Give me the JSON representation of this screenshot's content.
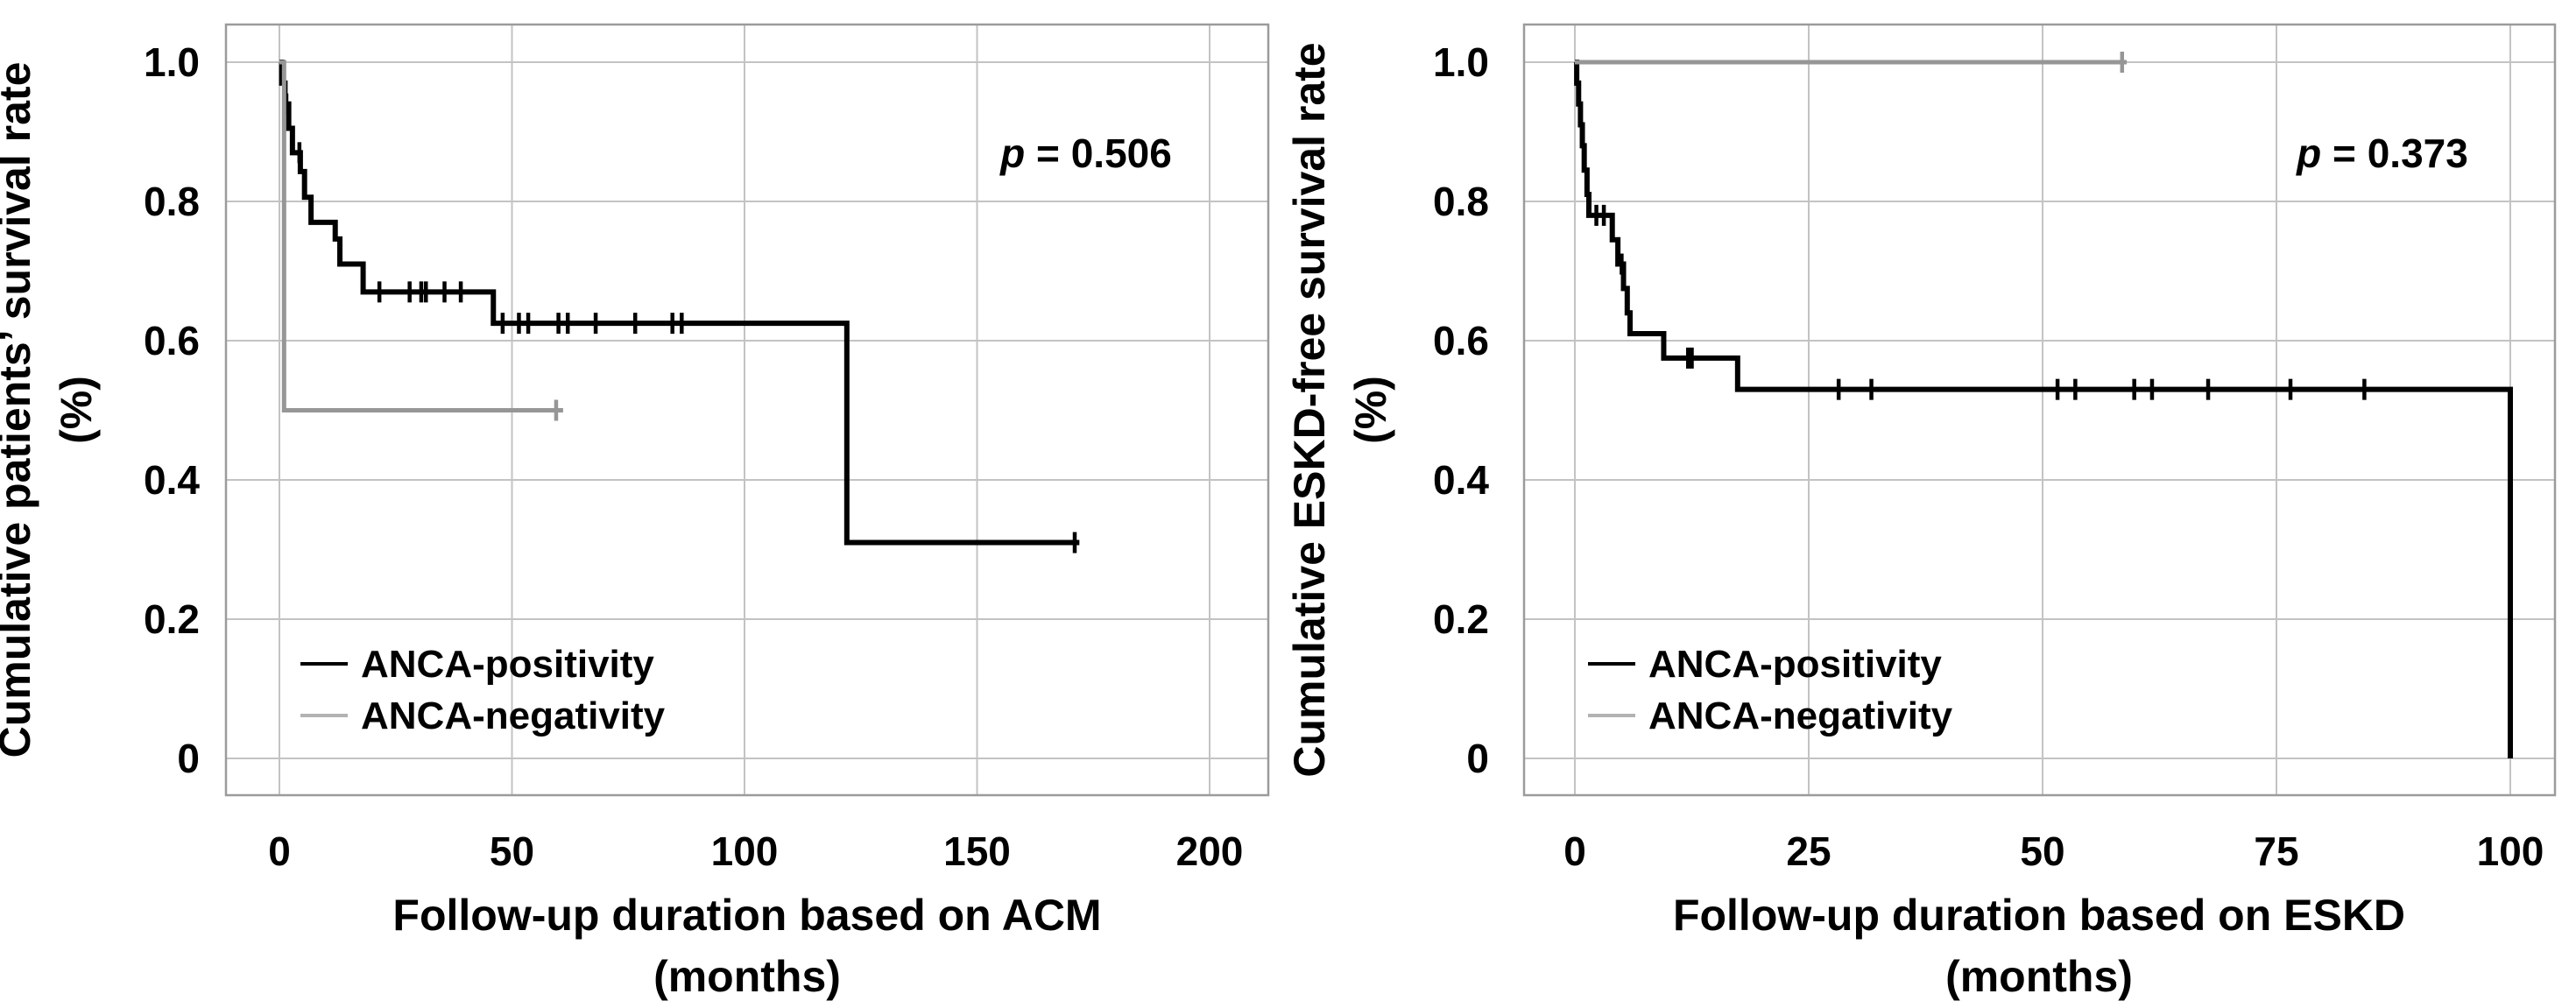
{
  "figure": {
    "background": "#ffffff",
    "grid_color": "#c3c3c3",
    "frame_color": "#9b9b9b",
    "text_color": "#000000"
  },
  "chart_data": [
    {
      "type": "line",
      "subtype": "kaplan-meier-step",
      "title": "",
      "xlabel_line1": "Follow-up duration based on ACM",
      "xlabel_line2": "(months)",
      "ylabel_line1": "Cumulative patients’ survival rate",
      "ylabel_line2": "(%)",
      "p_label": {
        "prefix": "p",
        "rest": " = 0.506"
      },
      "x_ticks": [
        "0",
        "50",
        "100",
        "150",
        "200"
      ],
      "x_tick_values": [
        0,
        50,
        100,
        150,
        200
      ],
      "y_ticks": [
        "1.0",
        "0.8",
        "0.6",
        "0.4",
        "0.2",
        "0"
      ],
      "y_tick_values": [
        1.0,
        0.8,
        0.6,
        0.4,
        0.2,
        0
      ],
      "xlim": [
        -11.5,
        212.6
      ],
      "ylim": [
        -0.053,
        1.054
      ],
      "grid": true,
      "legend": {
        "position": "lower-left",
        "items": [
          {
            "label": "ANCA-positivity",
            "color": "#000000"
          },
          {
            "label": "ANCA-negativity",
            "color": "#b2b2b2"
          }
        ]
      },
      "series": [
        {
          "name": "ANCA-positivity",
          "color": "#000000",
          "line_width": 6,
          "steps": [
            [
              0,
              1.0
            ],
            [
              0.5,
              0.97
            ],
            [
              1.2,
              0.94
            ],
            [
              2.0,
              0.905
            ],
            [
              2.8,
              0.87
            ],
            [
              4.5,
              0.843
            ],
            [
              5.4,
              0.806
            ],
            [
              6.8,
              0.77
            ],
            [
              12.0,
              0.746
            ],
            [
              13.0,
              0.71
            ],
            [
              18.0,
              0.67
            ],
            [
              46.0,
              0.625
            ],
            [
              122.0,
              0.31
            ]
          ],
          "end": 172,
          "censors": [
            [
              1.5,
              0.94
            ],
            [
              4.3,
              0.87
            ],
            [
              21.5,
              0.67
            ],
            [
              28.0,
              0.67
            ],
            [
              30.5,
              0.67
            ],
            [
              31.5,
              0.67
            ],
            [
              35.5,
              0.67
            ],
            [
              39.0,
              0.67
            ],
            [
              48.0,
              0.625
            ],
            [
              51.5,
              0.625
            ],
            [
              53.5,
              0.625
            ],
            [
              60.0,
              0.625
            ],
            [
              62.0,
              0.625
            ],
            [
              68.0,
              0.625
            ],
            [
              76.5,
              0.625
            ],
            [
              84.5,
              0.625
            ],
            [
              86.5,
              0.625
            ],
            [
              171.0,
              0.31
            ]
          ]
        },
        {
          "name": "ANCA-negativity",
          "color": "#969696",
          "line_width": 5,
          "steps": [
            [
              0,
              1.0
            ],
            [
              1.0,
              0.5
            ]
          ],
          "end": 61,
          "censors": [
            [
              59.5,
              0.5
            ]
          ]
        }
      ]
    },
    {
      "type": "line",
      "subtype": "kaplan-meier-step",
      "title": "",
      "xlabel_line1": "Follow-up duration based on ESKD",
      "xlabel_line2": "(months)",
      "ylabel_line1": "Cumulative ESKD-free survival rate",
      "ylabel_line2": "(%)",
      "p_label": {
        "prefix": "p",
        "rest": " = 0.373"
      },
      "x_ticks": [
        "0",
        "25",
        "50",
        "75",
        "100"
      ],
      "x_tick_values": [
        0,
        25,
        50,
        75,
        100
      ],
      "y_ticks": [
        "1.0",
        "0.8",
        "0.6",
        "0.4",
        "0.2",
        "0"
      ],
      "y_tick_values": [
        1.0,
        0.8,
        0.6,
        0.4,
        0.2,
        0
      ],
      "xlim": [
        -5.7,
        105.0
      ],
      "ylim": [
        -0.053,
        1.054
      ],
      "grid": true,
      "legend": {
        "position": "lower-left",
        "items": [
          {
            "label": "ANCA-positivity",
            "color": "#000000"
          },
          {
            "label": "ANCA-negativity",
            "color": "#b2b2b2"
          }
        ]
      },
      "series": [
        {
          "name": "ANCA-positivity",
          "color": "#000000",
          "line_width": 6,
          "steps": [
            [
              0,
              1.0
            ],
            [
              0.2,
              0.97
            ],
            [
              0.4,
              0.94
            ],
            [
              0.6,
              0.91
            ],
            [
              0.8,
              0.88
            ],
            [
              1.0,
              0.845
            ],
            [
              1.3,
              0.81
            ],
            [
              1.5,
              0.78
            ],
            [
              4.0,
              0.745
            ],
            [
              4.6,
              0.71
            ],
            [
              5.2,
              0.675
            ],
            [
              5.6,
              0.64
            ],
            [
              5.9,
              0.61
            ],
            [
              9.5,
              0.575
            ],
            [
              17.4,
              0.53
            ],
            [
              100.0,
              0.0
            ]
          ],
          "end": 100,
          "censors": [
            [
              2.3,
              0.78
            ],
            [
              3.1,
              0.78
            ],
            [
              5.0,
              0.71
            ],
            [
              12.1,
              0.575
            ],
            [
              12.5,
              0.575
            ],
            [
              28.2,
              0.53
            ],
            [
              31.7,
              0.53
            ],
            [
              51.6,
              0.53
            ],
            [
              53.5,
              0.53
            ],
            [
              59.8,
              0.53
            ],
            [
              61.7,
              0.53
            ],
            [
              67.7,
              0.53
            ],
            [
              76.5,
              0.53
            ],
            [
              84.4,
              0.53
            ]
          ]
        },
        {
          "name": "ANCA-negativity",
          "color": "#969696",
          "line_width": 5,
          "steps": [
            [
              0,
              1.0
            ]
          ],
          "end": 59,
          "censors": [
            [
              58.5,
              1.0
            ]
          ]
        }
      ]
    }
  ]
}
